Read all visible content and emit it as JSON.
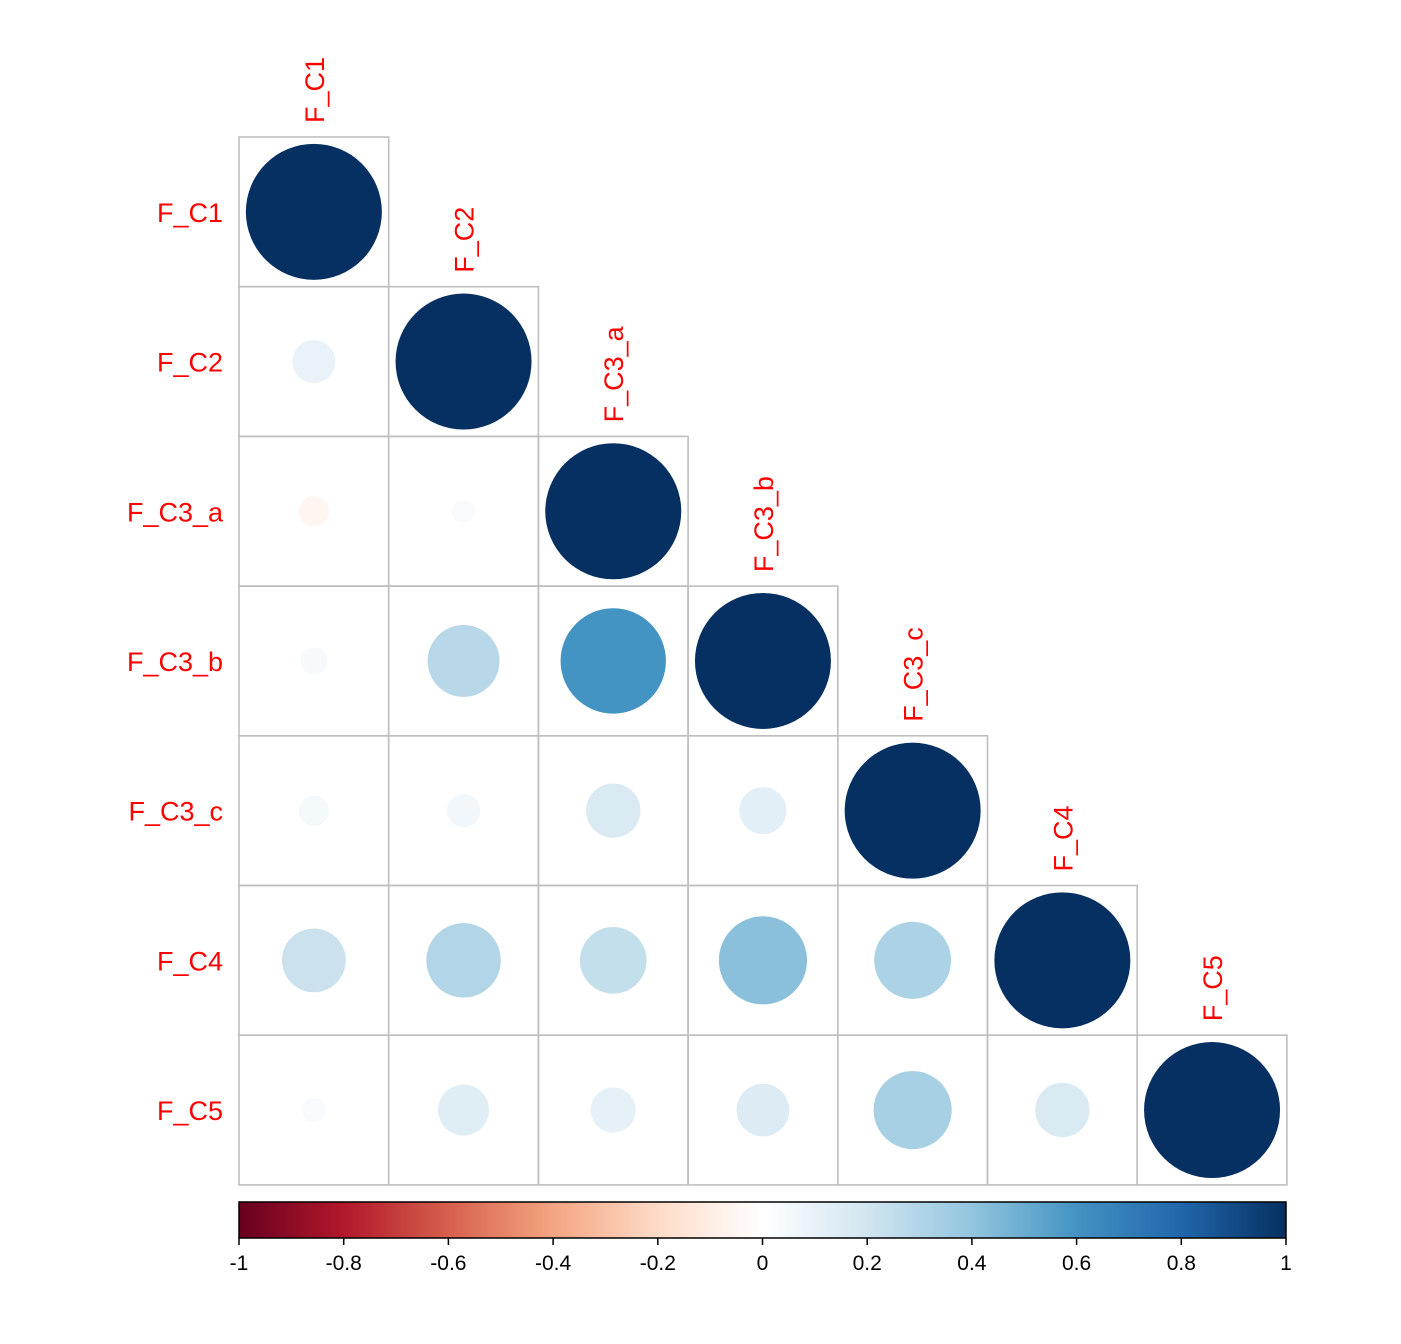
{
  "chart_data": {
    "type": "heatmap",
    "subtype": "correlation-circle-lower-triangle",
    "variables": [
      "F_C1",
      "F_C2",
      "F_C3_a",
      "F_C3_b",
      "F_C3_c",
      "F_C4",
      "F_C5"
    ],
    "matrix": [
      [
        1.0,
        0.1,
        -0.05,
        0.04,
        0.05,
        0.22,
        0.03
      ],
      [
        0.1,
        1.0,
        0.03,
        0.28,
        0.06,
        0.3,
        0.14
      ],
      [
        -0.05,
        0.03,
        1.0,
        0.6,
        0.16,
        0.24,
        0.11
      ],
      [
        0.04,
        0.28,
        0.6,
        1.0,
        0.12,
        0.42,
        0.15
      ],
      [
        0.05,
        0.06,
        0.16,
        0.12,
        1.0,
        0.32,
        0.33
      ],
      [
        0.22,
        0.3,
        0.24,
        0.42,
        0.32,
        1.0,
        0.16
      ],
      [
        0.03,
        0.14,
        0.11,
        0.15,
        0.33,
        0.16,
        1.0
      ]
    ],
    "colorbar": {
      "range": [
        -1,
        1
      ],
      "ticks": [
        "-1",
        "-0.8",
        "-0.6",
        "-0.4",
        "-0.2",
        "0",
        "0.2",
        "0.4",
        "0.6",
        "0.8",
        "1"
      ],
      "colors": [
        "#67001F",
        "#B2182B",
        "#D6604D",
        "#F4A582",
        "#FDDBC7",
        "#FFFFFF",
        "#D1E5F0",
        "#92C5DE",
        "#4393C3",
        "#2166AC",
        "#053061"
      ]
    },
    "label_color": "#ff0000",
    "grid_color": "#bfbfbf"
  }
}
